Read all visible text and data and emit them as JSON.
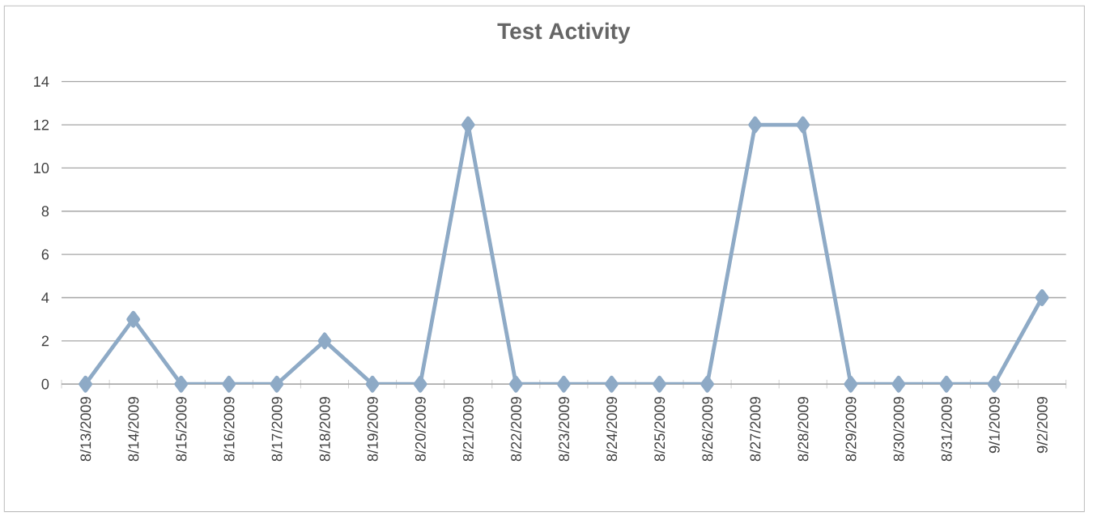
{
  "chart_data": {
    "type": "line",
    "title": "Test Activity",
    "categories": [
      "8/13/2009",
      "8/14/2009",
      "8/15/2009",
      "8/16/2009",
      "8/17/2009",
      "8/18/2009",
      "8/19/2009",
      "8/20/2009",
      "8/21/2009",
      "8/22/2009",
      "8/23/2009",
      "8/24/2009",
      "8/25/2009",
      "8/26/2009",
      "8/27/2009",
      "8/28/2009",
      "8/29/2009",
      "8/30/2009",
      "8/31/2009",
      "9/1/2009",
      "9/2/2009"
    ],
    "values": [
      0,
      3,
      0,
      0,
      0,
      2,
      0,
      0,
      12,
      0,
      0,
      0,
      0,
      0,
      12,
      12,
      0,
      0,
      0,
      0,
      4
    ],
    "color": "#8eaac6",
    "ylim": [
      0,
      14
    ],
    "yticks": [
      0,
      2,
      4,
      6,
      8,
      10,
      12,
      14
    ],
    "grid": "y",
    "marker": "diamond",
    "line_style": "solid"
  }
}
